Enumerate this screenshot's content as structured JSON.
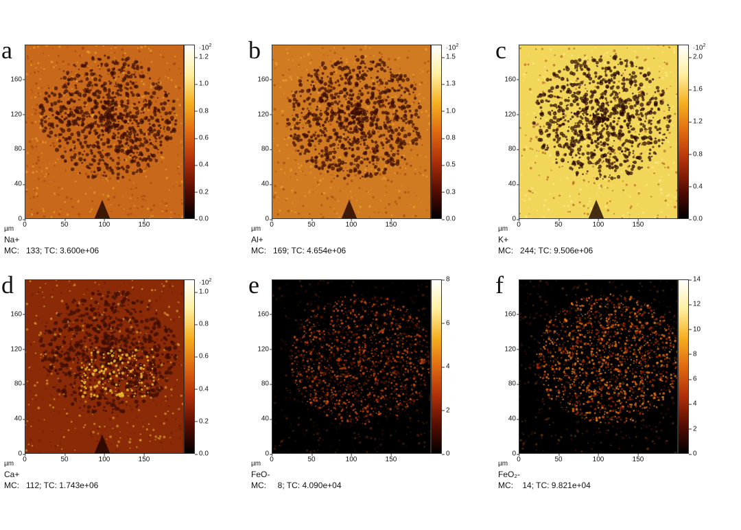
{
  "unit_label": "µm",
  "x_ticks": [
    "0",
    "50",
    "100",
    "150"
  ],
  "y_ticks": [
    "0",
    "40",
    "80",
    "120",
    "160"
  ],
  "panels": [
    {
      "letter": "a",
      "ion": "Na+",
      "mc": "MC:   133; TC: 3.600e+06",
      "cbar_exp": "·10",
      "cbar_exp_sup": "2",
      "cbar_ticks": [
        "1.2",
        "1.0",
        "0.8",
        "0.6",
        "0.4",
        "0.2",
        "0.0"
      ],
      "background": "#c8681a",
      "pattern": "dendrite",
      "colors": {
        "dark": "#3a0d02",
        "mid": "#9a3a0a",
        "light": "#f0b030"
      }
    },
    {
      "letter": "b",
      "ion": "Al+",
      "mc": "MC:   169; TC: 4.654e+06",
      "cbar_exp": "·10",
      "cbar_exp_sup": "2",
      "cbar_ticks": [
        "1.5",
        "1.3",
        "1.0",
        "0.8",
        "0.5",
        "0.3",
        "0.0"
      ],
      "background": "#d07a22",
      "pattern": "dendrite",
      "colors": {
        "dark": "#3a0d02",
        "mid": "#9a3a0a",
        "light": "#f0b030"
      }
    },
    {
      "letter": "c",
      "ion": "K+",
      "mc": "MC:   244; TC: 9.506e+06",
      "cbar_exp": "·10",
      "cbar_exp_sup": "2",
      "cbar_ticks": [
        "2.0",
        "1.6",
        "1.2",
        "0.8",
        "0.4",
        "0.0"
      ],
      "background": "#f2d65a",
      "pattern": "dendrite",
      "colors": {
        "dark": "#2a0802",
        "mid": "#a04010",
        "light": "#fff2a0"
      }
    },
    {
      "letter": "d",
      "ion": "Ca+",
      "mc": "MC:   112; TC: 1.743e+06",
      "cbar_exp": "·10",
      "cbar_exp_sup": "2",
      "cbar_ticks": [
        "1.0",
        "0.8",
        "0.6",
        "0.4",
        "0.2",
        "0.0"
      ],
      "background": "#8a2a06",
      "pattern": "ca",
      "colors": {
        "dark": "#3a0d02",
        "mid": "#6a1a04",
        "light": "#f0c030"
      }
    },
    {
      "letter": "e",
      "ion": "FeO-",
      "mc": "MC:     8; TC: 4.090e+04",
      "cbar_exp": "",
      "cbar_exp_sup": "",
      "cbar_ticks": [
        "8",
        "6",
        "4",
        "2",
        "0"
      ],
      "background": "#000000",
      "pattern": "blob",
      "colors": {
        "dark": "#1a0300",
        "mid": "#5a1502",
        "light": "#d05010"
      }
    },
    {
      "letter": "f",
      "ion": "FeO₂-",
      "mc": "MC:    14; TC: 9.821e+04",
      "cbar_exp": "",
      "cbar_exp_sup": "",
      "cbar_ticks": [
        "14",
        "12",
        "10",
        "8",
        "6",
        "4",
        "2",
        "0"
      ],
      "background": "#000000",
      "pattern": "blob",
      "colors": {
        "dark": "#2a0500",
        "mid": "#a02a04",
        "light": "#f08018"
      }
    }
  ]
}
